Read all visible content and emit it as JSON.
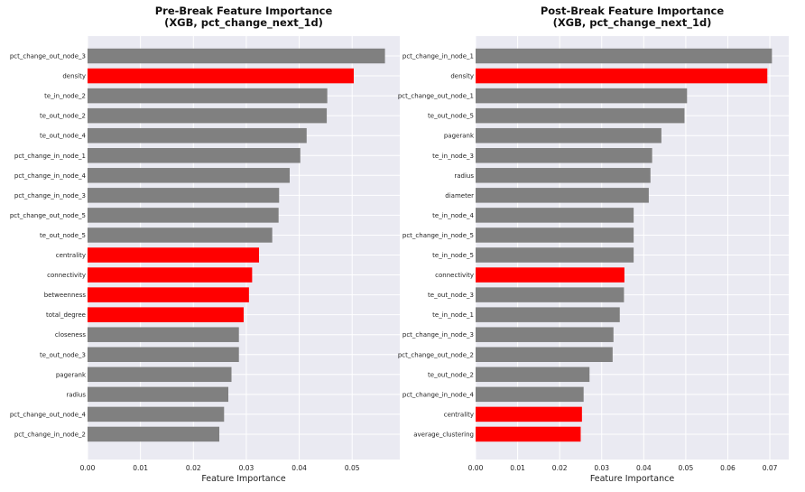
{
  "colors": {
    "highlight": "#ff0000",
    "normal": "#808080",
    "plot_bg": "#eaeaf2",
    "grid": "#ffffff"
  },
  "chart_data": [
    {
      "type": "bar",
      "orientation": "horizontal",
      "title": "Pre-Break Feature Importance",
      "subtitle": "(XGB, pct_change_next_1d)",
      "xlabel": "Feature Importance",
      "ylabel": "",
      "xlim": [
        0,
        0.059
      ],
      "xticks": [
        "0.00",
        "0.01",
        "0.02",
        "0.03",
        "0.04",
        "0.05"
      ],
      "grid": true,
      "categories": [
        "pct_change_out_node_3",
        "density",
        "te_in_node_2",
        "te_out_node_2",
        "te_out_node_4",
        "pct_change_in_node_1",
        "pct_change_in_node_4",
        "pct_change_in_node_3",
        "pct_change_out_node_5",
        "te_out_node_5",
        "centrality",
        "connectivity",
        "betweenness",
        "total_degree",
        "closeness",
        "te_out_node_3",
        "pagerank",
        "radius",
        "pct_change_out_node_4",
        "pct_change_in_node_2"
      ],
      "values": [
        0.0562,
        0.0503,
        0.0453,
        0.0452,
        0.0414,
        0.0402,
        0.0382,
        0.0362,
        0.0361,
        0.0349,
        0.0324,
        0.0311,
        0.0305,
        0.0295,
        0.0286,
        0.0286,
        0.0272,
        0.0266,
        0.0258,
        0.0249
      ],
      "highlighted": [
        false,
        true,
        false,
        false,
        false,
        false,
        false,
        false,
        false,
        false,
        true,
        true,
        true,
        true,
        false,
        false,
        false,
        false,
        false,
        false
      ]
    },
    {
      "type": "bar",
      "orientation": "horizontal",
      "title": "Post-Break Feature Importance",
      "subtitle": "(XGB, pct_change_next_1d)",
      "xlabel": "Feature Importance",
      "ylabel": "",
      "xlim": [
        0,
        0.0745
      ],
      "xticks": [
        "0.00",
        "0.01",
        "0.02",
        "0.03",
        "0.04",
        "0.05",
        "0.06",
        "0.07"
      ],
      "grid": true,
      "categories": [
        "pct_change_in_node_1",
        "density",
        "pct_change_out_node_1",
        "te_out_node_5",
        "pagerank",
        "te_in_node_3",
        "radius",
        "diameter",
        "te_in_node_4",
        "pct_change_in_node_5",
        "te_in_node_5",
        "connectivity",
        "te_out_node_3",
        "te_in_node_1",
        "pct_change_in_node_3",
        "pct_change_out_node_2",
        "te_out_node_2",
        "pct_change_in_node_4",
        "centrality",
        "average_clustering"
      ],
      "values": [
        0.0705,
        0.0694,
        0.0503,
        0.0497,
        0.0442,
        0.042,
        0.0416,
        0.0412,
        0.0376,
        0.0376,
        0.0376,
        0.0354,
        0.0353,
        0.0343,
        0.0328,
        0.0326,
        0.0271,
        0.0257,
        0.0253,
        0.025
      ],
      "highlighted": [
        false,
        true,
        false,
        false,
        false,
        false,
        false,
        false,
        false,
        false,
        false,
        true,
        false,
        false,
        false,
        false,
        false,
        false,
        true,
        true
      ]
    }
  ]
}
